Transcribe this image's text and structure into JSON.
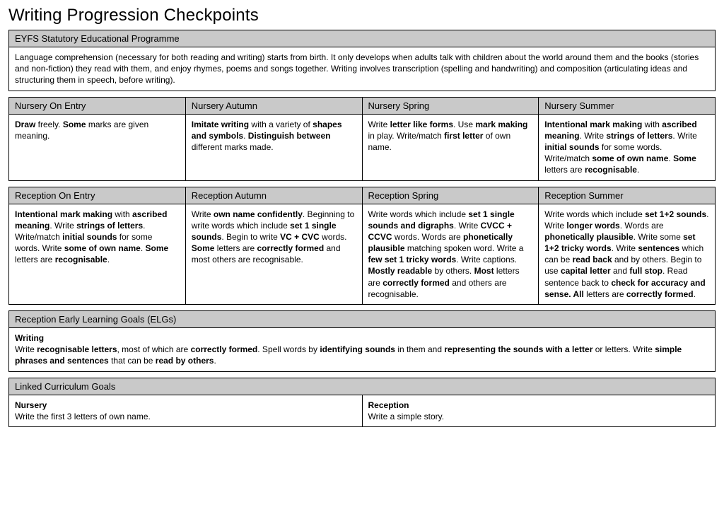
{
  "title": "Writing Progression Checkpoints",
  "eyfs": {
    "header": "EYFS Statutory Educational Programme",
    "body": " Language comprehension (necessary for both reading and writing) starts from birth. It only develops when adults talk with children about the world around them and the books (stories and non-fiction) they read with them, and enjoy rhymes, poems and songs together. Writing involves transcription (spelling and handwriting) and composition (articulating ideas and structuring them in speech, before writing)."
  },
  "nursery": {
    "headers": [
      "Nursery On Entry",
      "Nursery Autumn",
      "Nursery Spring",
      "Nursery Summer"
    ],
    "cells": [
      "<b>Draw</b> freely. <b>Some</b> marks are given meaning.",
      "<b>Imitate writing</b> with a variety of <b>shapes and symbols</b>. <b>Distinguish between</b> different marks made.",
      "Write <b>letter like forms</b>. Use <b>mark making</b> in play. Write/match  <b>first letter</b> of own name.",
      "<b>Intentional mark making</b> with <b>ascribed meaning</b>. Write <b>strings of letters</b>. Write <b>initial sounds</b> for some words. Write/match <b>some of own name</b>. <b>Some</b> letters are <b>recognisable</b>."
    ]
  },
  "reception": {
    "headers": [
      "Reception On Entry",
      "Reception Autumn",
      "Reception Spring",
      "Reception Summer"
    ],
    "cells": [
      "<b>Intentional mark making</b> with <b>ascribed meaning</b>. Write <b>strings of letters</b>. Write/match <b>initial sounds</b> for some words. Write <b>some of own name</b>. <b>Some</b> letters are <b>recognisable</b>.",
      "Write <b>own name confidently</b>. Beginning to write words which include <b>set 1 single sounds</b>. Begin to write <b>VC + CVC</b> words. <b>Some</b> letters are <b>correctly formed</b> and most others are recognisable.",
      "Write words which include <b>set 1 single sounds and digraphs</b>. Write <b>CVCC + CCVC</b> words. Words are <b>phonetically plausible</b> matching spoken word. Write a <b>few set 1 tricky words</b>. Write captions. <b>Mostly readable</b> by others. <b>Most</b> letters are <b>correctly formed</b> and others are recognisable.",
      "Write words which include <b>set 1+2 sounds</b>. Write <b>longer words</b>. Words are <b>phonetically plausible</b>. Write some <b>set 1+2 tricky words</b>. Write <b>sentences</b> which can be <b>read back</b> and by others. Begin to use <b>capital letter</b> and <b>full stop</b>. Read sentence back to <b>check for accuracy and sense. All</b> letters are <b>correctly formed</b>."
    ]
  },
  "elgs": {
    "header": "Reception Early Learning Goals (ELGs)",
    "body": "<b>Writing</b><br>Write <b>recognisable letters</b>, most of which are <b>correctly formed</b>. Spell words by <b>identifying sounds</b> in them and <b>representing the sounds with a letter</b> or letters. Write <b>simple phrases and sentences</b> that can be <b>read by others</b>."
  },
  "linked": {
    "header": "Linked Curriculum Goals",
    "cells": [
      "<b>Nursery</b><br>Write the first 3 letters of own name.",
      "<b>Reception</b><br>Write a simple story."
    ]
  },
  "styling": {
    "header_bg": "#c9c9c9",
    "border_color": "#000000",
    "page_bg": "#ffffff",
    "title_fontsize": 24,
    "header_fontsize": 13,
    "body_fontsize": 12
  }
}
